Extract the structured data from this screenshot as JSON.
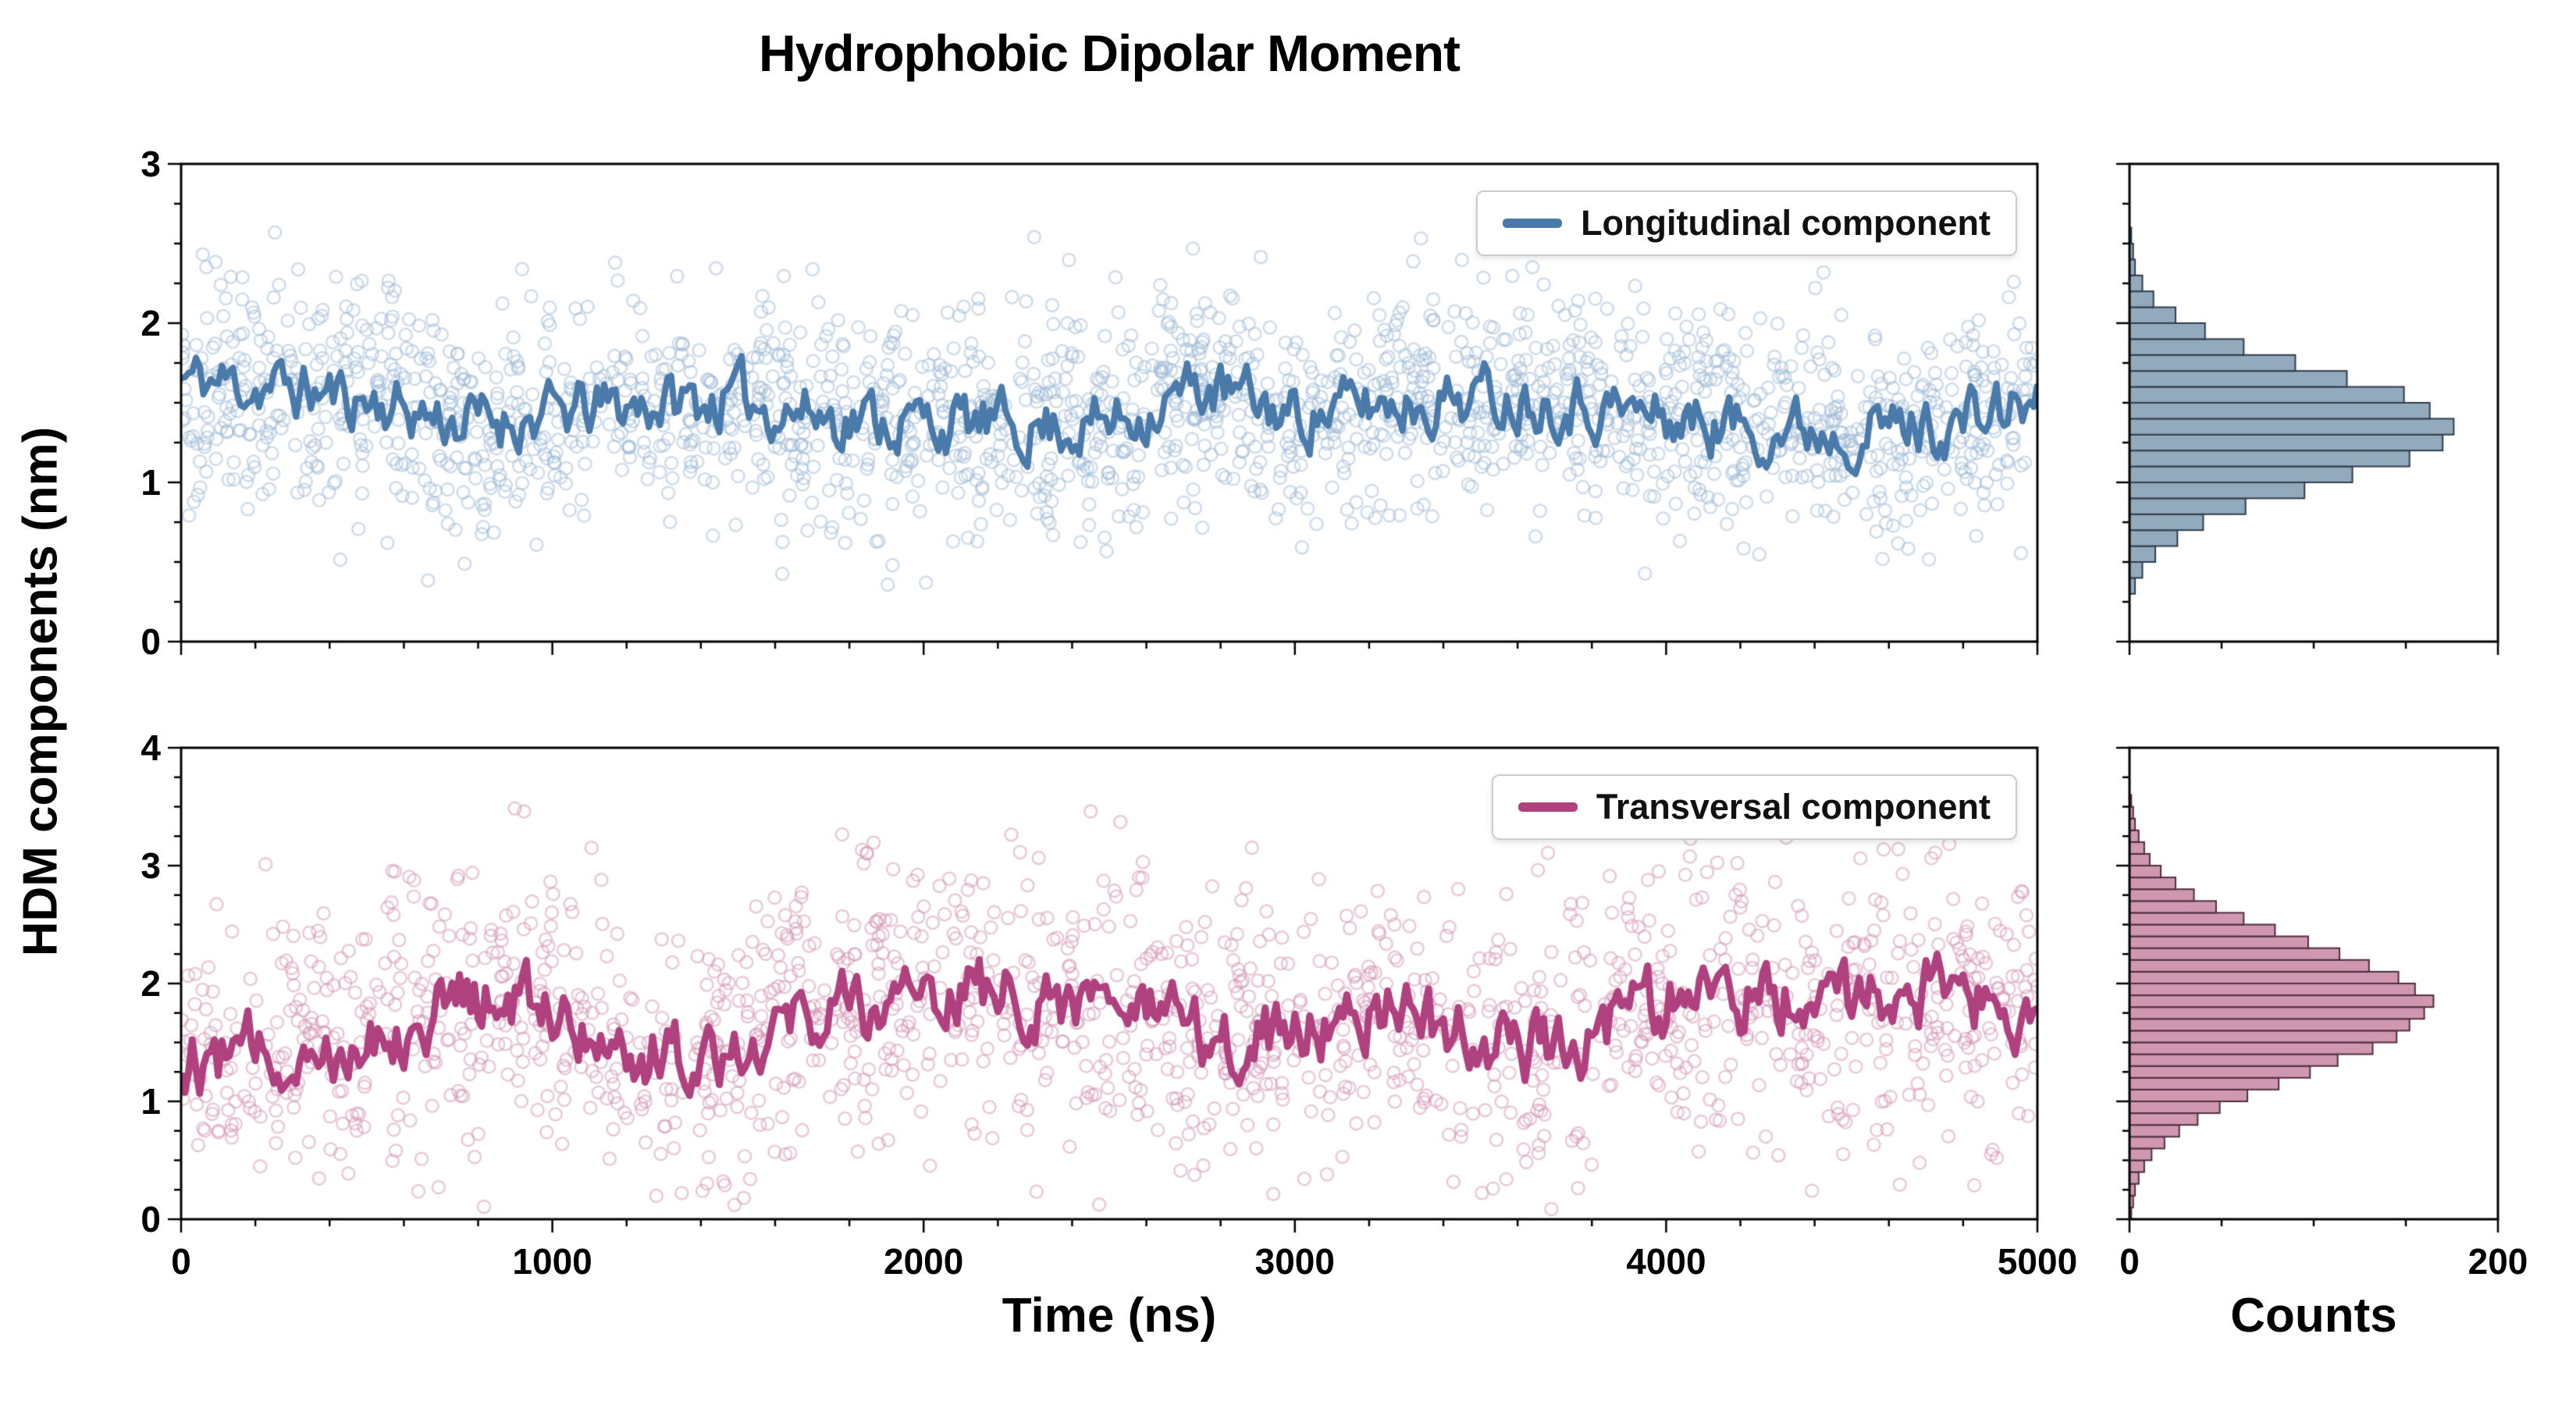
{
  "title": "Hydrophobic Dipolar Moment",
  "xlabel": "Time (ns)",
  "ylabel": "HDM components (nm)",
  "counts_label": "Counts",
  "chart_data": [
    {
      "type": "scatter",
      "panel": "top",
      "name": "Longitudinal component",
      "legend_position": "upper right",
      "line_color": "#4a7aa9",
      "marker_color": "#9db9d6",
      "hist_fill": "#93aabd",
      "hist_edge": "#2f3d4c",
      "x_range": [
        0,
        5000
      ],
      "y_range": [
        0,
        3
      ],
      "x_ticks": [
        0,
        1000,
        2000,
        3000,
        4000,
        5000
      ],
      "x_tick_labels_visible": false,
      "x_minor_step": 200,
      "y_ticks": [
        0,
        1,
        2,
        3
      ],
      "y_minor_step": 0.25,
      "mean_line": {
        "x": [
          0,
          250,
          500,
          750,
          1000,
          1250,
          1500,
          1750,
          2000,
          2250,
          2500,
          2750,
          3000,
          3250,
          3500,
          3750,
          4000,
          4250,
          4500,
          4750,
          5000
        ],
        "y": [
          1.65,
          1.6,
          1.52,
          1.38,
          1.42,
          1.5,
          1.52,
          1.42,
          1.38,
          1.35,
          1.37,
          1.6,
          1.42,
          1.5,
          1.55,
          1.52,
          1.4,
          1.35,
          1.34,
          1.36,
          1.5
        ],
        "jitter_amp": 0.1,
        "step": 10,
        "seed": 11,
        "width": 8
      },
      "scatter": {
        "n": 2000,
        "std": 0.34,
        "clip": [
          0.35,
          2.78
        ],
        "seed": 7,
        "radius": 8,
        "alpha": 0.5
      },
      "histogram": {
        "bin_start": 0.3,
        "bin_width": 0.1,
        "counts": [
          3,
          7,
          14,
          26,
          40,
          63,
          95,
          121,
          152,
          170,
          176,
          163,
          149,
          118,
          90,
          62,
          41,
          25,
          13,
          7,
          3,
          2,
          1
        ],
        "x_range": [
          0,
          200
        ],
        "x_ticks": [
          0,
          200
        ],
        "x_minor_step": 50,
        "x_tick_labels_visible": false
      }
    },
    {
      "type": "scatter",
      "panel": "bottom",
      "name": "Transversal component",
      "legend_position": "upper right",
      "line_color": "#b0417f",
      "marker_color": "#d494b4",
      "hist_fill": "#d097b1",
      "hist_edge": "#4d2f3f",
      "x_range": [
        0,
        5000
      ],
      "y_range": [
        0,
        4
      ],
      "x_ticks": [
        0,
        1000,
        2000,
        3000,
        4000,
        5000
      ],
      "x_tick_labels_visible": true,
      "x_minor_step": 200,
      "y_ticks": [
        0,
        1,
        2,
        3,
        4
      ],
      "y_minor_step": 0.25,
      "mean_line": {
        "x": [
          0,
          250,
          500,
          750,
          1000,
          1250,
          1500,
          1750,
          2000,
          2250,
          2500,
          2750,
          3000,
          3250,
          3500,
          3750,
          4000,
          4250,
          4500,
          4750,
          5000
        ],
        "y": [
          1.35,
          1.42,
          1.55,
          1.85,
          1.8,
          1.38,
          1.52,
          1.8,
          1.88,
          1.92,
          1.85,
          1.5,
          1.62,
          1.8,
          1.48,
          1.52,
          1.85,
          1.92,
          1.82,
          1.95,
          1.75
        ],
        "jitter_amp": 0.16,
        "step": 10,
        "seed": 12,
        "width": 9
      },
      "scatter": {
        "n": 1500,
        "std": 0.62,
        "clip": [
          0.03,
          3.75
        ],
        "seed": 8,
        "radius": 8,
        "alpha": 0.5
      },
      "histogram": {
        "bin_start": 0.0,
        "bin_width": 0.1,
        "counts": [
          1,
          2,
          3,
          5,
          8,
          12,
          19,
          27,
          37,
          49,
          64,
          81,
          98,
          113,
          132,
          145,
          152,
          160,
          165,
          155,
          146,
          130,
          114,
          97,
          79,
          62,
          47,
          35,
          25,
          17,
          11,
          8,
          5,
          3,
          2,
          1
        ],
        "x_range": [
          0,
          200
        ],
        "x_ticks": [
          0,
          200
        ],
        "x_minor_step": 50,
        "x_tick_labels_visible": true
      }
    }
  ]
}
